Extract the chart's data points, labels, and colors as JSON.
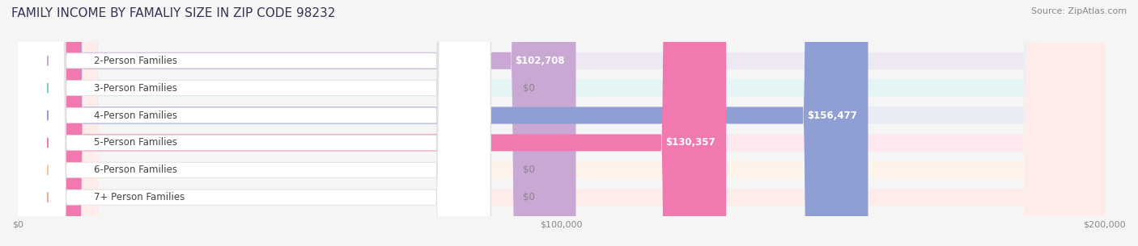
{
  "title": "FAMILY INCOME BY FAMALIY SIZE IN ZIP CODE 98232",
  "source": "Source: ZipAtlas.com",
  "categories": [
    "2-Person Families",
    "3-Person Families",
    "4-Person Families",
    "5-Person Families",
    "6-Person Families",
    "7+ Person Families"
  ],
  "values": [
    102708,
    0,
    156477,
    130357,
    0,
    0
  ],
  "bar_colors": [
    "#c9a8d4",
    "#7ececa",
    "#8f9fd4",
    "#f07ab0",
    "#f5c89a",
    "#f0a898"
  ],
  "label_colors": [
    "#c9a8d4",
    "#7ececa",
    "#8f9fd4",
    "#f07ab0",
    "#f5c89a",
    "#f0a898"
  ],
  "bar_bg_colors": [
    "#ede8f2",
    "#e5f5f5",
    "#eaecf5",
    "#fde8f0",
    "#fdf3ea",
    "#fdecea"
  ],
  "value_labels": [
    "$102,708",
    "$0",
    "$156,477",
    "$130,357",
    "$0",
    "$0"
  ],
  "xlim": [
    0,
    200000
  ],
  "xticks": [
    0,
    100000,
    200000
  ],
  "xticklabels": [
    "$0",
    "$100,000",
    "$200,000"
  ],
  "title_fontsize": 11,
  "source_fontsize": 8,
  "bar_height": 0.62,
  "figsize": [
    14.06,
    3.05
  ],
  "dpi": 100,
  "background_color": "#f5f5f5",
  "bar_row_bg": "#ececec",
  "value_fontsize": 8.5,
  "label_fontsize": 8.5,
  "title_color": "#333355",
  "source_color": "#888888"
}
